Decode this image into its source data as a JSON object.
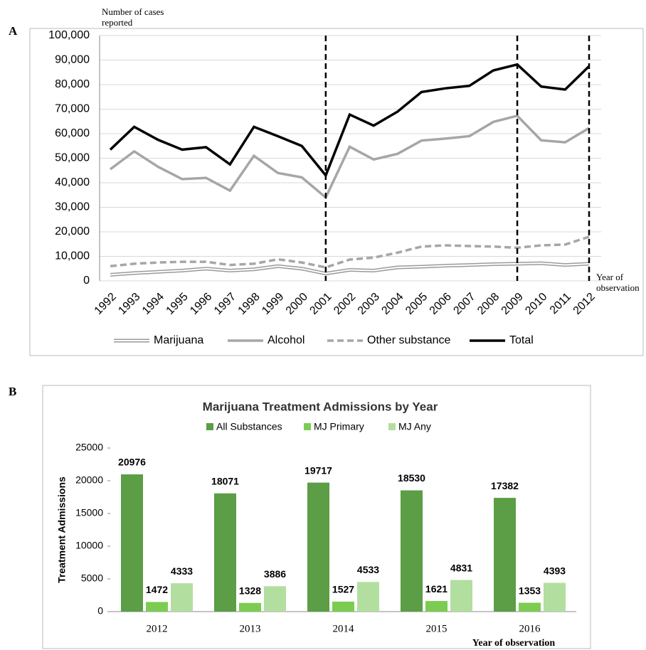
{
  "chart_data": [
    {
      "type": "line",
      "panel_label": "A",
      "y_label": "Number of cases reported",
      "x_label": "Year of observation",
      "categories": [
        "1992",
        "1993",
        "1994",
        "1995",
        "1996",
        "1997",
        "1998",
        "1999",
        "2000",
        "2001",
        "2002",
        "2003",
        "2004",
        "2005",
        "2006",
        "2007",
        "2008",
        "2009",
        "2010",
        "2011",
        "2012"
      ],
      "series": [
        {
          "name": "Marijuana",
          "color": "#9a9a9a",
          "style": "double",
          "values": [
            2500,
            3200,
            3700,
            4200,
            5000,
            4200,
            4700,
            6000,
            5000,
            3000,
            4500,
            4200,
            5500,
            5800,
            6200,
            6500,
            6800,
            7000,
            7200,
            6500,
            7000
          ]
        },
        {
          "name": "Alcohol",
          "color": "#a6a6a6",
          "style": "solid",
          "values": [
            45500,
            52800,
            46500,
            41500,
            42000,
            36800,
            51000,
            44000,
            42200,
            34000,
            54700,
            49500,
            51800,
            57200,
            58000,
            59000,
            64800,
            67300,
            57300,
            56500,
            62300
          ]
        },
        {
          "name": "Other substance",
          "color": "#a6a6a6",
          "style": "dashed",
          "values": [
            6000,
            7000,
            7500,
            7800,
            7800,
            6500,
            7000,
            8800,
            7500,
            5500,
            8700,
            9500,
            11500,
            14000,
            14500,
            14200,
            14000,
            13500,
            14500,
            14800,
            18000
          ]
        },
        {
          "name": "Total",
          "color": "#000000",
          "style": "solid",
          "values": [
            53500,
            62800,
            57500,
            53500,
            54500,
            47500,
            62800,
            59000,
            55000,
            43000,
            67800,
            63300,
            69000,
            77000,
            78500,
            79500,
            85800,
            88200,
            79200,
            78000,
            87500
          ]
        }
      ],
      "vlines": [
        "2001",
        "2009",
        "2012"
      ],
      "ylim": [
        0,
        100000
      ],
      "yticks": [
        0,
        {
          "value": 10000,
          "label": "10,000"
        },
        {
          "value": 20000,
          "label": "20,000"
        },
        {
          "value": 30000,
          "label": "30,000"
        },
        {
          "value": 40000,
          "label": "40,000"
        },
        {
          "value": 50000,
          "label": "50,000"
        },
        {
          "value": 60000,
          "label": "60,000"
        },
        {
          "value": 70000,
          "label": "70,000"
        },
        {
          "value": 80000,
          "label": "80,000"
        },
        {
          "value": 90000,
          "label": "90,000"
        },
        {
          "value": 100000,
          "label": "100,000"
        }
      ],
      "grid": true,
      "legend": "bottom"
    },
    {
      "type": "bar",
      "panel_label": "B",
      "title": "Marijuana Treatment Admissions by Year",
      "y_label": "Treatment Admissions",
      "x_label": "Year of observation",
      "categories": [
        "2012",
        "2013",
        "2014",
        "2015",
        "2016"
      ],
      "series": [
        {
          "name": "All Substances",
          "color": "#5b9e45",
          "values": [
            20976,
            18071,
            19717,
            18530,
            17382
          ]
        },
        {
          "name": "MJ Primary",
          "color": "#7ccc52",
          "values": [
            1472,
            1328,
            1527,
            1621,
            1353
          ]
        },
        {
          "name": "MJ Any",
          "color": "#b2dfa0",
          "values": [
            4333,
            3886,
            4533,
            4831,
            4393
          ]
        }
      ],
      "ylim": [
        0,
        25000
      ],
      "yticks": [
        0,
        5000,
        10000,
        15000,
        20000,
        25000
      ],
      "grid": false,
      "legend": "top"
    }
  ]
}
